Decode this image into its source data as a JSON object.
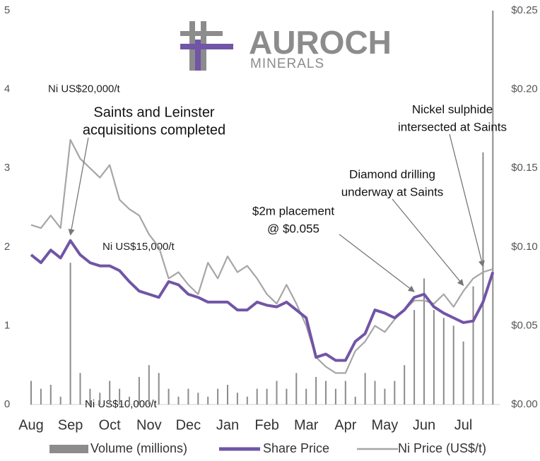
{
  "chart_data": {
    "type": "combo",
    "logo": {
      "name": "AUROCH",
      "subname": "MINERALS"
    },
    "categories": [
      "Aug",
      null,
      null,
      null,
      "Sep",
      null,
      null,
      null,
      "Oct",
      null,
      null,
      null,
      "Nov",
      null,
      null,
      null,
      "Dec",
      null,
      null,
      null,
      "Jan",
      null,
      null,
      null,
      "Feb",
      null,
      null,
      null,
      "Mar",
      null,
      null,
      null,
      "Apr",
      null,
      null,
      null,
      "May",
      null,
      null,
      null,
      "Jun",
      null,
      null,
      null,
      "Jul",
      null,
      null,
      null
    ],
    "ylim": [
      0,
      5
    ],
    "yticks": [
      0,
      1,
      2,
      3,
      4,
      5
    ],
    "y2lim": [
      0,
      0.25
    ],
    "y2ticks": [
      {
        "value": 0,
        "label": "$0.00"
      },
      {
        "value": 0.05,
        "label": "$0.05"
      },
      {
        "value": 0.1,
        "label": "$0.10"
      },
      {
        "value": 0.15,
        "label": "$0.15"
      },
      {
        "value": 0.2,
        "label": "$0.20"
      },
      {
        "value": 0.25,
        "label": "$0.25"
      }
    ],
    "y3lim": [
      10000,
      22500
    ],
    "y3ticks": [
      {
        "value": 10000,
        "label": "Ni US$10,000/t"
      },
      {
        "value": 15000,
        "label": "Ni US$15,000/t"
      },
      {
        "value": 20000,
        "label": "Ni US$20,000/t"
      }
    ],
    "series": [
      {
        "name": "Volume (millions)",
        "type": "bar",
        "color": "#8c8c8c",
        "values": [
          0.3,
          0.2,
          0.25,
          0.1,
          1.8,
          0.4,
          0.2,
          0.15,
          0.3,
          0.2,
          0.1,
          0.35,
          0.5,
          0.4,
          0.2,
          0.1,
          0.2,
          0.15,
          0.1,
          0.2,
          0.25,
          0.15,
          0.1,
          0.2,
          0.2,
          0.3,
          0.2,
          0.4,
          0.2,
          0.35,
          0.3,
          0.2,
          0.3,
          0.1,
          0.4,
          0.3,
          0.2,
          0.3,
          0.5,
          1.2,
          1.6,
          1.2,
          1.1,
          1.0,
          0.8,
          1.5,
          3.2,
          5.0
        ]
      },
      {
        "name": "Share Price",
        "type": "line",
        "axis": "y2",
        "color": "#7155a6",
        "values": [
          0.095,
          0.09,
          0.098,
          0.093,
          0.104,
          0.095,
          0.09,
          0.088,
          0.088,
          0.085,
          0.078,
          0.072,
          0.07,
          0.068,
          0.078,
          0.076,
          0.07,
          0.068,
          0.065,
          0.065,
          0.065,
          0.06,
          0.06,
          0.065,
          0.063,
          0.062,
          0.065,
          0.06,
          0.055,
          0.03,
          0.032,
          0.028,
          0.028,
          0.04,
          0.045,
          0.06,
          0.058,
          0.055,
          0.06,
          0.068,
          0.07,
          0.062,
          0.058,
          0.055,
          0.052,
          0.053,
          0.065,
          0.084
        ]
      },
      {
        "name": "Ni Price (US$/t)",
        "type": "line",
        "axis": "y3",
        "color": "#a6a6a6",
        "values": [
          15700,
          15600,
          16000,
          15600,
          18400,
          17800,
          17500,
          17200,
          17600,
          16500,
          16200,
          16000,
          15400,
          15000,
          14000,
          14200,
          13800,
          13500,
          14500,
          14000,
          14700,
          14200,
          14400,
          14000,
          13500,
          13200,
          13800,
          13200,
          12500,
          11500,
          11200,
          11000,
          11000,
          11700,
          12000,
          12500,
          12300,
          12700,
          13000,
          13300,
          13300,
          13200,
          13500,
          13100,
          13600,
          14000,
          14200,
          14300
        ]
      }
    ],
    "annotations": [
      {
        "lines": [
          "Saints and Leinster",
          "acquisitions completed"
        ],
        "target": 4
      },
      {
        "lines": [
          "$2m placement",
          "@ $0.055"
        ],
        "target": 39
      },
      {
        "lines": [
          "Diamond drilling",
          "underway at Saints"
        ],
        "target": 44
      },
      {
        "lines": [
          "Nickel sulphide",
          "intersected at Saints"
        ],
        "target": 46
      }
    ]
  }
}
